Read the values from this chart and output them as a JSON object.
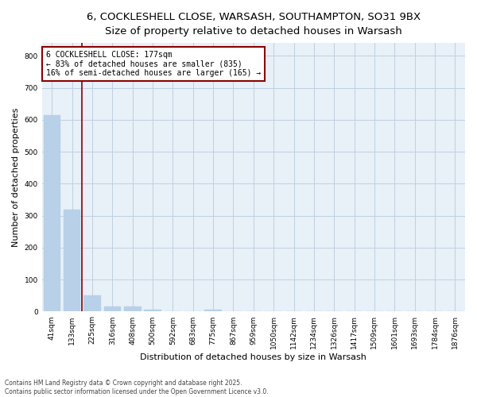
{
  "title_line1": "6, COCKLESHELL CLOSE, WARSASH, SOUTHAMPTON, SO31 9BX",
  "title_line2": "Size of property relative to detached houses in Warsash",
  "xlabel": "Distribution of detached houses by size in Warsash",
  "ylabel": "Number of detached properties",
  "categories": [
    "41sqm",
    "133sqm",
    "225sqm",
    "316sqm",
    "408sqm",
    "500sqm",
    "592sqm",
    "683sqm",
    "775sqm",
    "867sqm",
    "959sqm",
    "1050sqm",
    "1142sqm",
    "1234sqm",
    "1326sqm",
    "1417sqm",
    "1509sqm",
    "1601sqm",
    "1693sqm",
    "1784sqm",
    "1876sqm"
  ],
  "values": [
    615,
    320,
    50,
    15,
    15,
    5,
    0,
    0,
    5,
    0,
    0,
    0,
    0,
    0,
    0,
    0,
    0,
    0,
    0,
    0,
    0
  ],
  "bar_color": "#b8d0e8",
  "bar_edge_color": "#b8d0e8",
  "grid_color": "#c0cfe0",
  "background_color": "#e8f0f8",
  "vline_color": "#8b0000",
  "annotation_text": "6 COCKLESHELL CLOSE: 177sqm\n← 83% of detached houses are smaller (835)\n16% of semi-detached houses are larger (165) →",
  "annotation_box_color": "#8b0000",
  "ylim": [
    0,
    840
  ],
  "yticks": [
    0,
    100,
    200,
    300,
    400,
    500,
    600,
    700,
    800
  ],
  "footnote_line1": "Contains HM Land Registry data © Crown copyright and database right 2025.",
  "footnote_line2": "Contains public sector information licensed under the Open Government Licence v3.0.",
  "title_fontsize": 9.5,
  "subtitle_fontsize": 8.5,
  "axis_label_fontsize": 8,
  "tick_fontsize": 6.5,
  "annotation_fontsize": 7,
  "footnote_fontsize": 5.5
}
